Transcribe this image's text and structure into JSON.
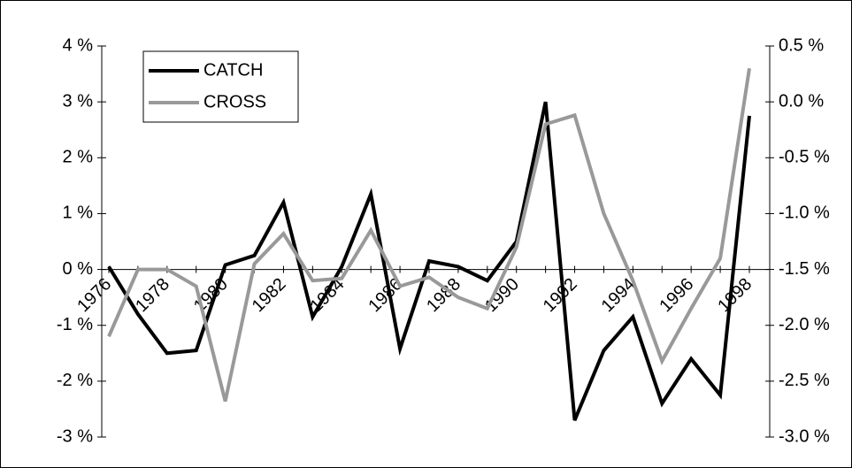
{
  "chart_data": {
    "type": "line",
    "categories": [
      "1976",
      null,
      "1978",
      null,
      "1980",
      null,
      "1982",
      null,
      "1984",
      null,
      "1986",
      null,
      "1988",
      null,
      "1990",
      null,
      "1992",
      null,
      "1994",
      null,
      "1996",
      null,
      "1998"
    ],
    "series": [
      {
        "name": "CATCH",
        "color": "#000000",
        "axis": "y",
        "values": [
          0.05,
          -0.8,
          -1.5,
          -1.45,
          0.08,
          0.25,
          1.2,
          -0.85,
          0.05,
          1.35,
          -1.42,
          0.15,
          0.05,
          -0.2,
          0.5,
          3.0,
          -2.7,
          -1.45,
          -0.85,
          -2.4,
          -1.6,
          -2.25,
          2.75
        ]
      },
      {
        "name": "CROSS",
        "color": "#999999",
        "axis": "y2",
        "values": [
          -2.1,
          -1.5,
          -1.5,
          -1.65,
          -2.68,
          -1.45,
          -1.18,
          -1.6,
          -1.58,
          -1.15,
          -1.65,
          -1.57,
          -1.75,
          -1.85,
          -1.3,
          -0.2,
          -0.12,
          -1.0,
          -1.6,
          -2.32,
          -1.85,
          -1.4,
          0.3
        ]
      }
    ],
    "ylim": [
      -3,
      4
    ],
    "yticks": [
      {
        "value": -3,
        "label": "-3 %"
      },
      {
        "value": -2,
        "label": "-2 %"
      },
      {
        "value": -1,
        "label": "-1 %"
      },
      {
        "value": 0,
        "label": "0 %"
      },
      {
        "value": 1,
        "label": "1 %"
      },
      {
        "value": 2,
        "label": "2 %"
      },
      {
        "value": 3,
        "label": "3 %"
      },
      {
        "value": 4,
        "label": "4 %"
      }
    ],
    "y2lim": [
      -3.0,
      0.5
    ],
    "y2ticks": [
      {
        "value": -3.0,
        "label": "-3.0 %"
      },
      {
        "value": -2.5,
        "label": "-2.5 %"
      },
      {
        "value": -2.0,
        "label": "-2.0 %"
      },
      {
        "value": -1.5,
        "label": "-1.5 %"
      },
      {
        "value": -1.0,
        "label": "-1.0 %"
      },
      {
        "value": -0.5,
        "label": "-0.5 %"
      },
      {
        "value": 0.0,
        "label": "0.0 %"
      },
      {
        "value": 0.5,
        "label": "0.5 %"
      }
    ],
    "legend": "upper left"
  }
}
